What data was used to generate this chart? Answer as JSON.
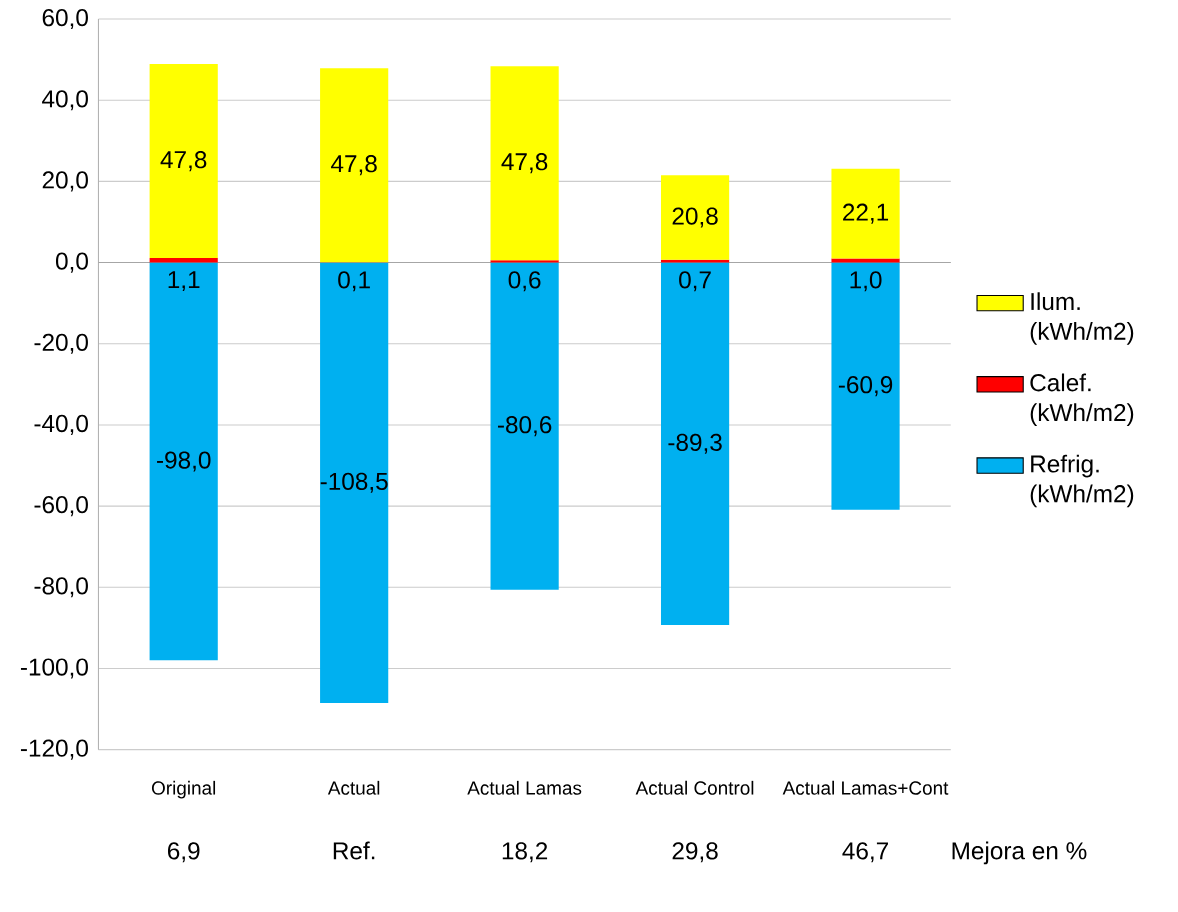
{
  "chart_data": {
    "type": "bar",
    "stacked": true,
    "categories": [
      "Original",
      "Actual",
      "Actual Lamas",
      "Actual Control",
      "Actual Lamas+Cont"
    ],
    "series": [
      {
        "name": "Refrig. (kWh/m2)",
        "color": "#00b0f0",
        "values": [
          -98.0,
          -108.5,
          -80.6,
          -89.3,
          -60.9
        ],
        "value_labels": [
          "-98,0",
          "-108,5",
          "-80,6",
          "-89,3",
          "-60,9"
        ]
      },
      {
        "name": "Calef. (kWh/m2)",
        "color": "#ff0000",
        "values": [
          1.1,
          0.1,
          0.6,
          0.7,
          1.0
        ],
        "value_labels": [
          "1,1",
          "0,1",
          "0,6",
          "0,7",
          "1,0"
        ]
      },
      {
        "name": "Ilum. (kWh/m2)",
        "color": "#ffff00",
        "values": [
          47.8,
          47.8,
          47.8,
          20.8,
          22.1
        ],
        "value_labels": [
          "47,8",
          "47,8",
          "47,8",
          "20,8",
          "22,1"
        ]
      }
    ],
    "ylim": [
      -120,
      60
    ],
    "yticks": [
      {
        "value": -120,
        "label": "-120,0"
      },
      {
        "value": -100,
        "label": "-100,0"
      },
      {
        "value": -80,
        "label": "-80,0"
      },
      {
        "value": -60,
        "label": "-60,0"
      },
      {
        "value": -40,
        "label": "-40,0"
      },
      {
        "value": -20,
        "label": "-20,0"
      },
      {
        "value": 0,
        "label": "0,0"
      },
      {
        "value": 20,
        "label": "20,0"
      },
      {
        "value": 40,
        "label": "40,0"
      },
      {
        "value": 60,
        "label": "60,0"
      }
    ],
    "grid": "y",
    "legend": "right",
    "annotations": [
      "6,9",
      "Ref.",
      "18,2",
      "29,8",
      "46,7",
      "Mejora en %"
    ]
  }
}
